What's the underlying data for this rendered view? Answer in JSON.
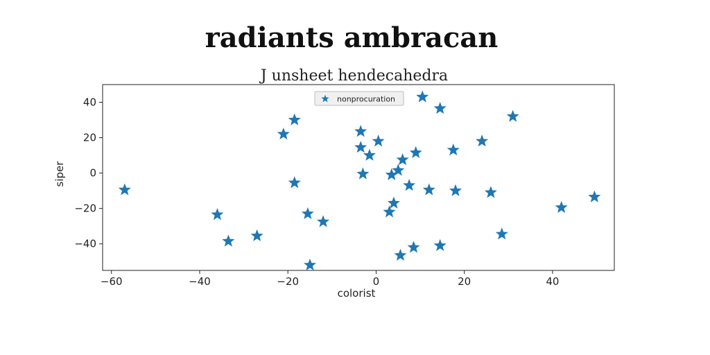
{
  "chart_data": {
    "type": "scatter",
    "title": "radiants ambracan",
    "subtitle": "J unsheet hendecahedra",
    "xlabel": "colorist",
    "ylabel": "siper",
    "xlim": [
      -62,
      54
    ],
    "ylim": [
      -55,
      50
    ],
    "xticks": [
      -60,
      -40,
      -20,
      0,
      20,
      40
    ],
    "yticks": [
      -40,
      -20,
      0,
      20,
      40
    ],
    "xtick_labels": [
      "−60",
      "−40",
      "−20",
      "0",
      "20",
      "40"
    ],
    "ytick_labels": [
      "−40",
      "−20",
      "0",
      "20",
      "40"
    ],
    "legend_position": "top-center",
    "grid": false,
    "series": [
      {
        "name": "nonprocuration",
        "color": "#1f77b4",
        "marker": "star",
        "x": [
          -57,
          -36,
          -33.5,
          -27,
          -21,
          -18.5,
          -18.5,
          -15.5,
          -15,
          -12,
          -3.5,
          -3.5,
          -3,
          -1.5,
          0.5,
          3,
          3.5,
          4,
          5,
          5.5,
          6,
          7.5,
          8.5,
          9,
          10.5,
          12,
          14.5,
          14.5,
          17.5,
          18,
          24,
          26,
          28.5,
          31,
          42,
          49.5
        ],
        "y": [
          -9.5,
          -23.5,
          -38.5,
          -35.5,
          22,
          30,
          -5.5,
          -23,
          -52,
          -27.5,
          14.5,
          23.5,
          -0.5,
          10,
          18,
          -22,
          -1,
          -17,
          1.5,
          -46.5,
          7.5,
          -7,
          -42,
          11.5,
          43,
          -9.5,
          36.5,
          -41,
          13,
          -10,
          18,
          -11,
          -34.5,
          32,
          -19.5,
          -13.5
        ]
      }
    ]
  }
}
